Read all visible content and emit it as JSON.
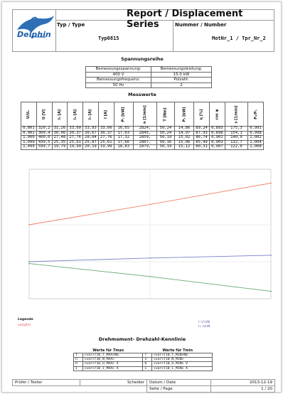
{
  "header": {
    "logo": "Delphin",
    "logo_sub": "Technology",
    "title": "Report / Displacement Series",
    "type_label": "Typ / Type",
    "type_value": "Typ0815",
    "number_label": "Nummer / Number",
    "number_value": "MotNr_1 / Tpr_Nr_2"
  },
  "params": {
    "title": "Spannungsreihe",
    "rated_voltage_label": "Bemessungsspannung:",
    "rated_voltage": "400 V",
    "rated_power_label": "Bemessungsleistung:",
    "rated_power": "15,0 kW",
    "rated_freq_label": "Bemessungsfrequenz:",
    "rated_freq": "50 Hz",
    "pole_label": "Polzahl:",
    "pole": "2"
  },
  "measured": {
    "title": "Messwerte",
    "columns": [
      "U/Uₙ",
      "U [V]",
      "I₁ [A]",
      "I₂ [A]",
      "I₃ [A]",
      "I [A]",
      "P₁ [kW]",
      "n [1/min]",
      "T [Nm]",
      "P₂ [kW]",
      "η [%]",
      "cos φ",
      "s [1/min]",
      "P₂/Pₙ"
    ],
    "rows": [
      [
        "0,801",
        "320,2",
        "31,26",
        "33,60",
        "33,93",
        "33,60",
        "16,65",
        "2824,",
        "50,24",
        "14,86",
        "89,24",
        "0,893",
        "175,3",
        "0,991"
      ],
      [
        "0,901",
        "360,4",
        "30,06",
        "30,37",
        "30,67",
        "30,37",
        "17,03",
        "2845,",
        "50,24",
        "14,97",
        "87,93",
        "0,898",
        "154,1",
        "0,998"
      ],
      [
        "1,000",
        "400,0",
        "27,48",
        "27,76",
        "28,04",
        "27,76",
        "17,32",
        "2859,",
        "50,19",
        "15,02",
        "86,74",
        "0,901",
        "140,9",
        "1,002"
      ],
      [
        "1,099",
        "439,5",
        "25,35",
        "25,61",
        "25,87",
        "25,61",
        "17,66",
        "2867,",
        "50,16",
        "15,06",
        "85,49",
        "0,903",
        "132,7",
        "1,004"
      ],
      [
        "1,499",
        "599,7",
        "19,79",
        "19,99",
        "20,19",
        "19,99",
        "18,83",
        "2879,",
        "50,19",
        "15,12",
        "80,31",
        "0,907",
        "122,0",
        "1,008"
      ]
    ]
  },
  "chart_data": {
    "type": "line",
    "x": [
      400,
      500,
      600
    ],
    "series": [
      {
        "name": "",
        "color": "#f0826a",
        "values": [
          140,
          162,
          185
        ]
      },
      {
        "name": "",
        "color": "#7a80c8",
        "values": [
          100,
          104,
          107
        ]
      },
      {
        "name": "",
        "color": "#6aa86a",
        "values": [
          98,
          84,
          68
        ]
      }
    ],
    "ylim": [
      60,
      200
    ]
  },
  "legend": {
    "title": "Legende",
    "a": "cos(phi)",
    "b1": "I: U-UN",
    "b2": "n: n/nN"
  },
  "curve_table": {
    "title": "Drehmoment- Drehzahl-Kennlinie",
    "max_title": "Werte für Tmax",
    "min_title": "Werte für Tmin",
    "rows": [
      [
        "T",
        "<var>T10_T_MAX>Nm",
        "T",
        "<var>T10_T_MIN>Nm"
      ],
      [
        "n",
        "<var>T10_N_MAX>",
        "n",
        "<var>T10_N_MIN>"
      ],
      [
        "U",
        "<var>T10_U_MAX> V",
        "U",
        "<var>T10_U_MIN> V"
      ],
      [
        "I",
        "<var>T10_I_MAX> A",
        "I",
        "<var>T10_I_MIN> A"
      ]
    ]
  },
  "footer": {
    "tester_label": "Prüfer / Tester",
    "tester": "Scheider",
    "date_label": "Datum / Date",
    "date": "2013-12-19",
    "page_label": "Seite / Page",
    "page": "1 / 20"
  }
}
